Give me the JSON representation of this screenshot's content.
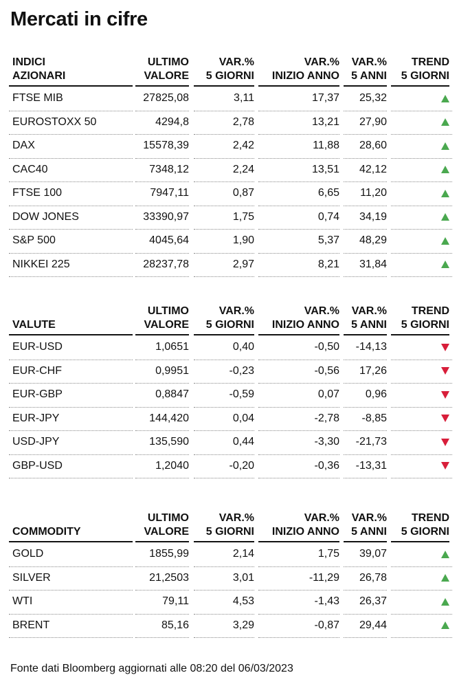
{
  "title": "Mercati in cifre",
  "colors": {
    "up": "#4aa84f",
    "down": "#d81e3a"
  },
  "sections": [
    {
      "headers": [
        [
          "INDICI",
          "AZIONARI"
        ],
        [
          "ULTIMO",
          "VALORE"
        ],
        [
          "VAR.%",
          "5 GIORNI"
        ],
        [
          "VAR.%",
          "INIZIO ANNO"
        ],
        [
          "VAR.%",
          "5 ANNI"
        ],
        [
          "TREND",
          "5 GIORNI"
        ]
      ],
      "rows": [
        {
          "name": "FTSE MIB",
          "value": "27825,08",
          "v5g": "3,11",
          "vya": "17,37",
          "v5a": "25,32",
          "trend": "up-arrow-icon"
        },
        {
          "name": "EUROSTOXX 50",
          "value": "4294,8",
          "v5g": "2,78",
          "vya": "13,21",
          "v5a": "27,90",
          "trend": "up-arrow-icon"
        },
        {
          "name": "DAX",
          "value": "15578,39",
          "v5g": "2,42",
          "vya": "11,88",
          "v5a": "28,60",
          "trend": "up-arrow-icon"
        },
        {
          "name": "CAC40",
          "value": "7348,12",
          "v5g": "2,24",
          "vya": "13,51",
          "v5a": "42,12",
          "trend": "up-arrow-icon"
        },
        {
          "name": "FTSE 100",
          "value": "7947,11",
          "v5g": "0,87",
          "vya": "6,65",
          "v5a": "11,20",
          "trend": "up-arrow-icon"
        },
        {
          "name": "DOW JONES",
          "value": "33390,97",
          "v5g": "1,75",
          "vya": "0,74",
          "v5a": "34,19",
          "trend": "up-arrow-icon"
        },
        {
          "name": "S&P 500",
          "value": "4045,64",
          "v5g": "1,90",
          "vya": "5,37",
          "v5a": "48,29",
          "trend": "up-arrow-icon"
        },
        {
          "name": "NIKKEI 225",
          "value": "28237,78",
          "v5g": "2,97",
          "vya": "8,21",
          "v5a": "31,84",
          "trend": "up-arrow-icon"
        }
      ]
    },
    {
      "headers": [
        [
          "",
          "VALUTE"
        ],
        [
          "ULTIMO",
          "VALORE"
        ],
        [
          "VAR.%",
          "5 GIORNI"
        ],
        [
          "VAR.%",
          "INIZIO ANNO"
        ],
        [
          "VAR.%",
          "5 ANNI"
        ],
        [
          "TREND",
          "5 GIORNI"
        ]
      ],
      "rows": [
        {
          "name": "EUR-USD",
          "value": "1,0651",
          "v5g": "0,40",
          "vya": "-0,50",
          "v5a": "-14,13",
          "trend": "down-arrow-icon"
        },
        {
          "name": "EUR-CHF",
          "value": "0,9951",
          "v5g": "-0,23",
          "vya": "-0,56",
          "v5a": "17,26",
          "trend": "down-arrow-icon"
        },
        {
          "name": "EUR-GBP",
          "value": "0,8847",
          "v5g": "-0,59",
          "vya": "0,07",
          "v5a": "0,96",
          "trend": "down-arrow-icon"
        },
        {
          "name": "EUR-JPY",
          "value": "144,420",
          "v5g": "0,04",
          "vya": "-2,78",
          "v5a": "-8,85",
          "trend": "down-arrow-icon"
        },
        {
          "name": "USD-JPY",
          "value": "135,590",
          "v5g": "0,44",
          "vya": "-3,30",
          "v5a": "-21,73",
          "trend": "down-arrow-icon"
        },
        {
          "name": "GBP-USD",
          "value": "1,2040",
          "v5g": "-0,20",
          "vya": "-0,36",
          "v5a": "-13,31",
          "trend": "down-arrow-icon"
        }
      ]
    },
    {
      "headers": [
        [
          "",
          "COMMODITY"
        ],
        [
          "ULTIMO",
          "VALORE"
        ],
        [
          "VAR.%",
          "5 GIORNI"
        ],
        [
          "VAR.%",
          "INIZIO ANNO"
        ],
        [
          "VAR.%",
          "5 ANNI"
        ],
        [
          "TREND",
          "5 GIORNI"
        ]
      ],
      "rows": [
        {
          "name": "GOLD",
          "value": "1855,99",
          "v5g": "2,14",
          "vya": "1,75",
          "v5a": "39,07",
          "trend": "up-arrow-icon"
        },
        {
          "name": "SILVER",
          "value": "21,2503",
          "v5g": "3,01",
          "vya": "-11,29",
          "v5a": "26,78",
          "trend": "up-arrow-icon"
        },
        {
          "name": "WTI",
          "value": "79,11",
          "v5g": "4,53",
          "vya": "-1,43",
          "v5a": "26,37",
          "trend": "up-arrow-icon"
        },
        {
          "name": "BRENT",
          "value": "85,16",
          "v5g": "3,29",
          "vya": "-0,87",
          "v5a": "29,44",
          "trend": "up-arrow-icon"
        }
      ]
    }
  ],
  "footer": "Fonte dati Bloomberg aggiornati alle 08:20 del 06/03/2023"
}
